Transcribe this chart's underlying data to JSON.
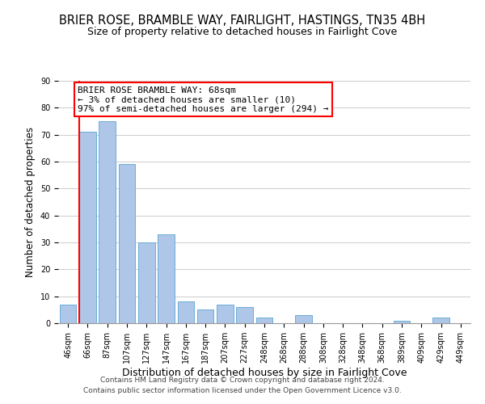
{
  "title": "BRIER ROSE, BRAMBLE WAY, FAIRLIGHT, HASTINGS, TN35 4BH",
  "subtitle": "Size of property relative to detached houses in Fairlight Cove",
  "xlabel": "Distribution of detached houses by size in Fairlight Cove",
  "ylabel": "Number of detached properties",
  "footer_line1": "Contains HM Land Registry data © Crown copyright and database right 2024.",
  "footer_line2": "Contains public sector information licensed under the Open Government Licence v3.0.",
  "bins": [
    "46sqm",
    "66sqm",
    "87sqm",
    "107sqm",
    "127sqm",
    "147sqm",
    "167sqm",
    "187sqm",
    "207sqm",
    "227sqm",
    "248sqm",
    "268sqm",
    "288sqm",
    "308sqm",
    "328sqm",
    "348sqm",
    "368sqm",
    "389sqm",
    "409sqm",
    "429sqm",
    "449sqm"
  ],
  "values": [
    7,
    71,
    75,
    59,
    30,
    33,
    8,
    5,
    7,
    6,
    2,
    0,
    3,
    0,
    0,
    0,
    0,
    1,
    0,
    2
  ],
  "bar_color": "#aec6e8",
  "bar_edge_color": "#6aaed6",
  "marker_line_color": "red",
  "annotation_title": "BRIER ROSE BRAMBLE WAY: 68sqm",
  "annotation_line1": "← 3% of detached houses are smaller (10)",
  "annotation_line2": "97% of semi-detached houses are larger (294) →",
  "annotation_box_color": "white",
  "annotation_box_edge_color": "red",
  "ylim": [
    0,
    90
  ],
  "yticks": [
    0,
    10,
    20,
    30,
    40,
    50,
    60,
    70,
    80,
    90
  ],
  "title_fontsize": 10.5,
  "subtitle_fontsize": 9,
  "ylabel_fontsize": 8.5,
  "xlabel_fontsize": 9,
  "tick_fontsize": 7,
  "annotation_fontsize": 8,
  "footer_fontsize": 6.5
}
